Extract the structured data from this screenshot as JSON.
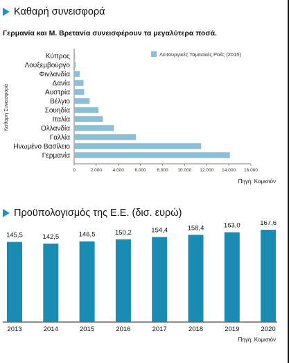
{
  "colors": {
    "bar1": "#8bbfd6",
    "bar2": "#1a8bb3",
    "accent": "#2a8fb8"
  },
  "section1": {
    "title": "Καθαρή συνεισφορά",
    "subtitle": "Γερμανία και Μ. Βρετανία συνεισφέρουν τα μεγαλύτερα ποσά.",
    "source": "Πηγή: Κομισιόν"
  },
  "section2": {
    "title": "Προϋπολογισμός της Ε.Ε. (δισ. ευρώ)",
    "source": "Πηγή: Κομισιόν"
  },
  "chart_data": [
    {
      "type": "bar",
      "orientation": "horizontal",
      "categories": [
        "Κύπρος",
        "Λουξεμβούργο",
        "Φινλανδία",
        "Δανία",
        "Αυστρία",
        "Βέλγιο",
        "Σουηδία",
        "Ιταλία",
        "Ολλανδία",
        "Γαλλία",
        "Ηνωμένο Βασίλειο",
        "Γερμανία"
      ],
      "series": [
        {
          "name": "Λειτουργικές Ταμειακές Ροές (2015)",
          "values": [
            90,
            130,
            500,
            850,
            900,
            1400,
            2200,
            2600,
            3600,
            5600,
            11500,
            14100
          ]
        }
      ],
      "ylabel": "Καθαρή Συνεισφορά",
      "xticks": [
        "0",
        "2.000",
        "4.000",
        "6.000",
        "8.000",
        "10.000",
        "12.000",
        "14.000",
        "16.000"
      ],
      "xlim": [
        0,
        16000
      ],
      "legend": "top-right",
      "grid": false
    },
    {
      "type": "bar",
      "categories": [
        "2013",
        "2014",
        "2015",
        "2016",
        "2017",
        "2018",
        "2019",
        "2020"
      ],
      "values": [
        145.5,
        142.5,
        146.5,
        150.2,
        154.4,
        158.4,
        163.0,
        167.6
      ],
      "data_labels": [
        "145,5",
        "142,5",
        "146,5",
        "150,2",
        "154,4",
        "158,4",
        "163,0",
        "167,6"
      ],
      "grid": false
    }
  ]
}
